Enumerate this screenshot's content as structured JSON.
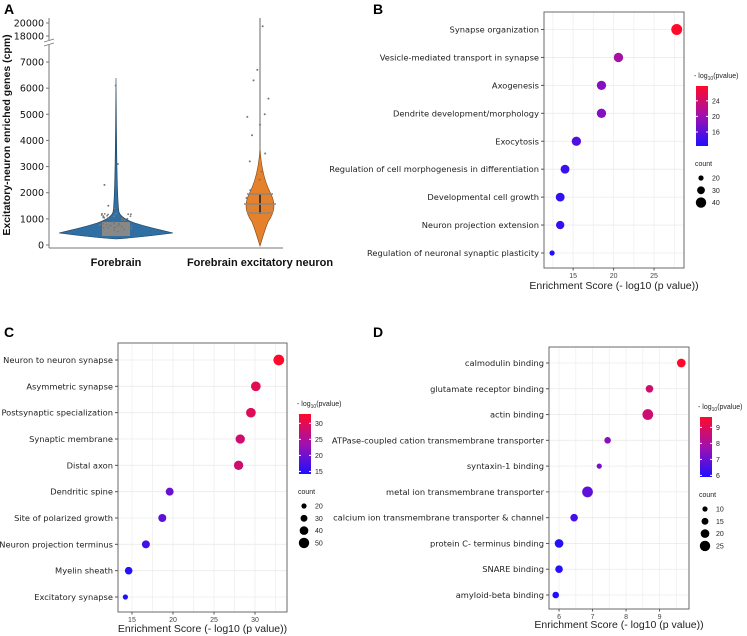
{
  "chart_data": [
    {
      "panel": "A",
      "type": "violin",
      "ylabel": "Excitatory-neuron enriched genes (cpm)",
      "categories": [
        "Forebrain",
        "Forebrain excitatory neuron"
      ],
      "yticks": [
        0,
        1000,
        2000,
        3000,
        4000,
        5000,
        6000,
        7000,
        18000,
        20000
      ],
      "y_break": [
        7500,
        17500
      ],
      "colors": [
        "#2f6fa3",
        "#e5812b"
      ],
      "series": [
        {
          "name": "Forebrain",
          "median": 450,
          "q1": 250,
          "q3": 700,
          "max": 6200,
          "outliers": [
            6100,
            3100,
            2300,
            1500,
            1400,
            1200,
            1100,
            1000
          ]
        },
        {
          "name": "Forebrain excitatory neuron",
          "median": 1500,
          "q1": 1100,
          "q3": 1800,
          "max": 20000,
          "outliers": [
            19500,
            6700,
            6300,
            5600,
            5000,
            4900,
            4600,
            4200,
            3500,
            3200,
            2800,
            2500,
            2100,
            1800
          ]
        }
      ]
    },
    {
      "panel": "B",
      "type": "scatter",
      "xlabel": "Enrichment Score (- log10 (p value))",
      "xlim": [
        11.4,
        28.7
      ],
      "xticks": [
        15,
        20,
        25
      ],
      "color_legend": {
        "title_prefix": "- log",
        "title_sub": "10",
        "title_suffix": "(pvalue)",
        "ticks": [
          24,
          20,
          16
        ],
        "range": [
          12.4,
          27.8
        ]
      },
      "size_legend": {
        "title": "count",
        "values": [
          20,
          30,
          40
        ]
      },
      "categories": [
        "Synapse organization",
        "Vesicle-mediated transport in synapse",
        "Axogenesis",
        "Dendrite development/morphology",
        "Exocytosis",
        "Regulation of cell morphogenesis in differentiation",
        "Developmental cell growth",
        "Neuron projection extension",
        "Regulation of neuronal synaptic plasticity"
      ],
      "values": [
        27.8,
        20.6,
        18.5,
        18.5,
        15.4,
        14.0,
        13.4,
        13.4,
        12.4
      ],
      "counts": [
        42,
        36,
        36,
        36,
        36,
        34,
        34,
        32,
        20
      ]
    },
    {
      "panel": "C",
      "type": "scatter",
      "xlabel": "Enrichment Score (- log10 (p value))",
      "xlim": [
        13.3,
        33.9
      ],
      "xticks": [
        15,
        20,
        25,
        30
      ],
      "color_legend": {
        "title_prefix": "- log",
        "title_sub": "10",
        "title_suffix": "(pvalue)",
        "ticks": [
          30,
          25,
          20,
          15
        ],
        "range": [
          14.2,
          32.9
        ]
      },
      "size_legend": {
        "title": "count",
        "values": [
          20,
          30,
          40,
          50
        ]
      },
      "categories": [
        "Neuron to neuron synapse",
        "Asymmetric synapse",
        "Postsynaptic specialization",
        "Synaptic membrane",
        "Distal axon",
        "Dendritic spine",
        "Site of polarized growth",
        "Neuron projection terminus",
        "Myelin sheath",
        "Excitatory synapse"
      ],
      "values": [
        32.9,
        30.1,
        29.5,
        28.2,
        28.0,
        19.6,
        18.7,
        16.7,
        14.6,
        14.2
      ],
      "counts": [
        52,
        46,
        46,
        44,
        44,
        36,
        36,
        36,
        34,
        20
      ]
    },
    {
      "panel": "D",
      "type": "scatter",
      "xlabel": "Enrichment Score (- log10 (p value))",
      "xlim": [
        5.7,
        9.88
      ],
      "xticks": [
        6,
        7,
        8,
        9
      ],
      "color_legend": {
        "title_prefix": "- log",
        "title_sub": "10",
        "title_suffix": "(pvalue)",
        "ticks": [
          9,
          8,
          7,
          6
        ],
        "range": [
          5.9,
          9.65
        ]
      },
      "size_legend": {
        "title": "count",
        "values": [
          10,
          15,
          20,
          25
        ]
      },
      "categories": [
        "calmodulin binding",
        "glutamate receptor binding",
        "actin binding",
        "ATPase-coupled cation transmembrane transporter",
        "syntaxin-1 binding",
        "metal ion transmembrane transporter",
        "calcium ion transmembrane transporter & channel",
        "protein C- terminus binding",
        "SNARE binding",
        "amyloid-beta binding"
      ],
      "values": [
        9.65,
        8.7,
        8.65,
        7.45,
        7.2,
        6.85,
        6.45,
        6.0,
        6.0,
        5.9
      ],
      "counts": [
        20,
        17,
        26,
        14,
        9,
        26,
        17,
        20,
        17,
        14
      ]
    }
  ],
  "panel_labels": [
    "A",
    "B",
    "C",
    "D"
  ],
  "colors": {
    "low": "#1f10ff",
    "high": "#ff0a2a",
    "grid": "#ebebeb",
    "border": "#6a6a6a"
  }
}
